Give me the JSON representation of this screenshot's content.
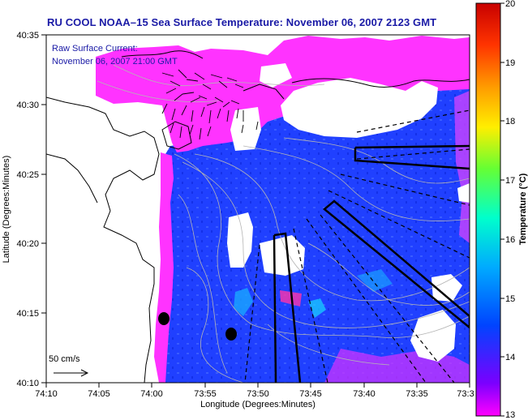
{
  "title": "RU COOL  NOAA–15  Sea Surface Temperature:  November 06, 2007 2123 GMT",
  "legend": {
    "line1": "Raw Surface Current:",
    "line2": "November 06, 2007 21:00 GMT"
  },
  "scale_arrow_label": "50 cm/s",
  "x_axis": {
    "label": "Longitude (Degrees:Minutes)",
    "ticks": [
      "74:10",
      "74:05",
      "74:00",
      "73:55",
      "73:50",
      "73:45",
      "73:40",
      "73:35",
      "73:3"
    ]
  },
  "y_axis": {
    "label": "Latitude (Degrees:Minutes)",
    "ticks": [
      "40:35",
      "40:30",
      "40:25",
      "40:20",
      "40:15",
      "40:10"
    ]
  },
  "colorbar": {
    "label": "Temperature (°C)",
    "min": 13,
    "max": 20,
    "ticks": [
      "20",
      "19",
      "18",
      "17",
      "16",
      "15",
      "14",
      "13"
    ],
    "colors": [
      "#d40000",
      "#ff3300",
      "#ff9900",
      "#ffee00",
      "#66ff33",
      "#00ffcc",
      "#00aaff",
      "#0044ff",
      "#7a00ff",
      "#ff00ff"
    ]
  },
  "map_colors": {
    "land": "#ffffff",
    "water_dominant": "#1f3fff",
    "cool_water": "#ff33ff",
    "cloud_mask": "#ffffff",
    "coastline": "#000000",
    "bathymetry": "#b4b4b4"
  }
}
